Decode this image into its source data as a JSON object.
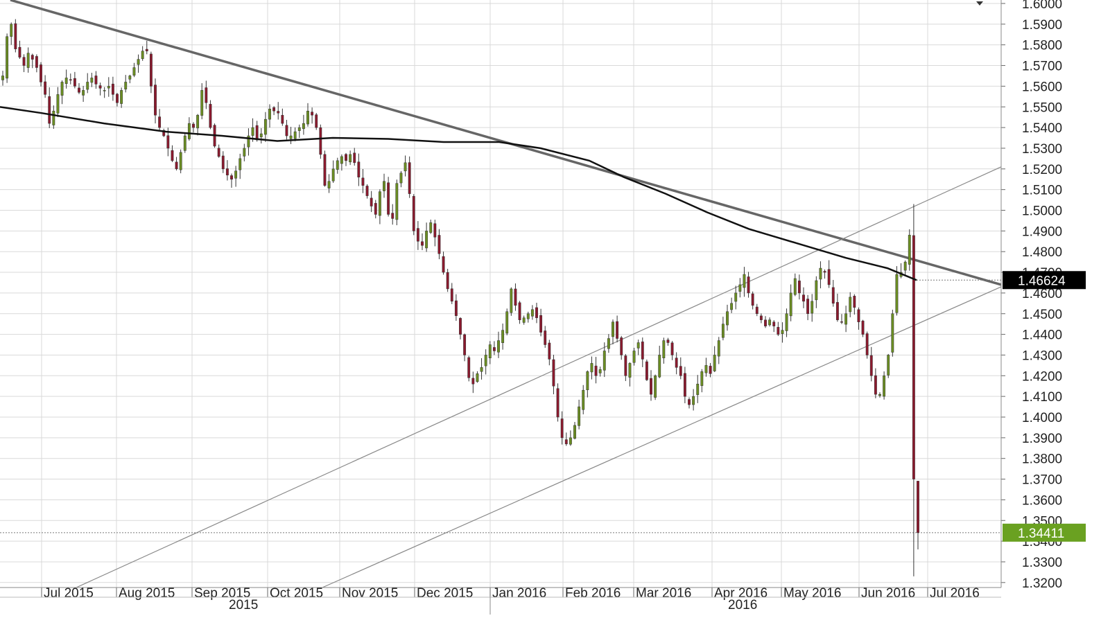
{
  "chart_data": {
    "type": "candlestick",
    "instrument": "",
    "y_range": [
      1.317,
      1.601
    ],
    "y_ticks": [
      "1.6000",
      "1.5900",
      "1.5800",
      "1.5700",
      "1.5600",
      "1.5500",
      "1.5400",
      "1.5300",
      "1.5200",
      "1.5100",
      "1.5000",
      "1.4900",
      "1.4800",
      "1.4700",
      "1.4600",
      "1.4500",
      "1.4400",
      "1.4300",
      "1.4200",
      "1.4100",
      "1.4000",
      "1.3900",
      "1.3800",
      "1.3700",
      "1.3600",
      "1.3500",
      "1.3400",
      "1.3300",
      "1.3200"
    ],
    "x_months": [
      "Jul 2015",
      "Aug 2015",
      "Sep 2015",
      "Oct 2015",
      "Nov 2015",
      "Dec 2015",
      "Jan 2016",
      "Feb 2016",
      "Mar 2016",
      "Apr 2016",
      "May 2016",
      "Jun 2016",
      "Jul 2016"
    ],
    "x_years": [
      "2015",
      "2016"
    ],
    "price_badges": [
      {
        "value": "1.46624",
        "level": 1.46624,
        "bg": "#000000"
      },
      {
        "value": "1.34411",
        "level": 1.34411,
        "bg": "#6aa121"
      },
      {
        "hidden_behind": "1.4700"
      },
      {
        "hidden_behind": "1.3500"
      }
    ],
    "colors": {
      "bull": "#6b8e23",
      "bear": "#8b1a2e",
      "wick": "#333333",
      "grid": "#d9d9d9",
      "ma": "#111111",
      "trend": "#666666",
      "channel": "#888888"
    },
    "close_path": [
      1.565,
      1.584,
      1.59,
      1.578,
      1.574,
      1.57,
      1.576,
      1.573,
      1.569,
      1.562,
      1.556,
      1.542,
      1.548,
      1.556,
      1.562,
      1.564,
      1.563,
      1.56,
      1.557,
      1.558,
      1.562,
      1.564,
      1.561,
      1.559,
      1.558,
      1.56,
      1.556,
      1.552,
      1.558,
      1.562,
      1.565,
      1.569,
      1.573,
      1.577,
      1.577,
      1.56,
      1.546,
      1.54,
      1.536,
      1.53,
      1.524,
      1.52,
      1.528,
      1.536,
      1.542,
      1.54,
      1.546,
      1.558,
      1.552,
      1.54,
      1.531,
      1.526,
      1.52,
      1.517,
      1.515,
      1.519,
      1.525,
      1.53,
      1.536,
      1.54,
      1.534,
      1.537,
      1.544,
      1.549,
      1.548,
      1.547,
      1.542,
      1.536,
      1.536,
      1.538,
      1.54,
      1.542,
      1.548,
      1.546,
      1.54,
      1.527,
      1.512,
      1.514,
      1.52,
      1.524,
      1.526,
      1.524,
      1.527,
      1.523,
      1.516,
      1.512,
      1.507,
      1.502,
      1.498,
      1.509,
      1.514,
      1.498,
      1.496,
      1.513,
      1.518,
      1.523,
      1.508,
      1.49,
      1.485,
      1.483,
      1.49,
      1.494,
      1.487,
      1.479,
      1.47,
      1.462,
      1.456,
      1.449,
      1.44,
      1.43,
      1.419,
      1.416,
      1.421,
      1.424,
      1.43,
      1.435,
      1.432,
      1.437,
      1.442,
      1.451,
      1.462,
      1.454,
      1.447,
      1.448,
      1.45,
      1.452,
      1.448,
      1.441,
      1.435,
      1.428,
      1.415,
      1.4,
      1.39,
      1.387,
      1.39,
      1.396,
      1.405,
      1.413,
      1.422,
      1.426,
      1.42,
      1.423,
      1.432,
      1.438,
      1.446,
      1.438,
      1.43,
      1.42,
      1.426,
      1.432,
      1.436,
      1.428,
      1.418,
      1.411,
      1.42,
      1.43,
      1.437,
      1.436,
      1.43,
      1.424,
      1.42,
      1.41,
      1.406,
      1.41,
      1.416,
      1.422,
      1.425,
      1.421,
      1.43,
      1.437,
      1.445,
      1.451,
      1.455,
      1.46,
      1.464,
      1.469,
      1.46,
      1.454,
      1.45,
      1.447,
      1.444,
      1.447,
      1.444,
      1.44,
      1.442,
      1.45,
      1.46,
      1.467,
      1.46,
      1.456,
      1.45,
      1.456,
      1.466,
      1.472,
      1.47,
      1.464,
      1.455,
      1.447,
      1.446,
      1.45,
      1.458,
      1.453,
      1.446,
      1.44,
      1.43,
      1.42,
      1.411,
      1.411,
      1.42,
      1.43,
      1.45,
      1.469,
      1.47,
      1.475,
      1.488,
      1.37,
      1.3441
    ]
  }
}
